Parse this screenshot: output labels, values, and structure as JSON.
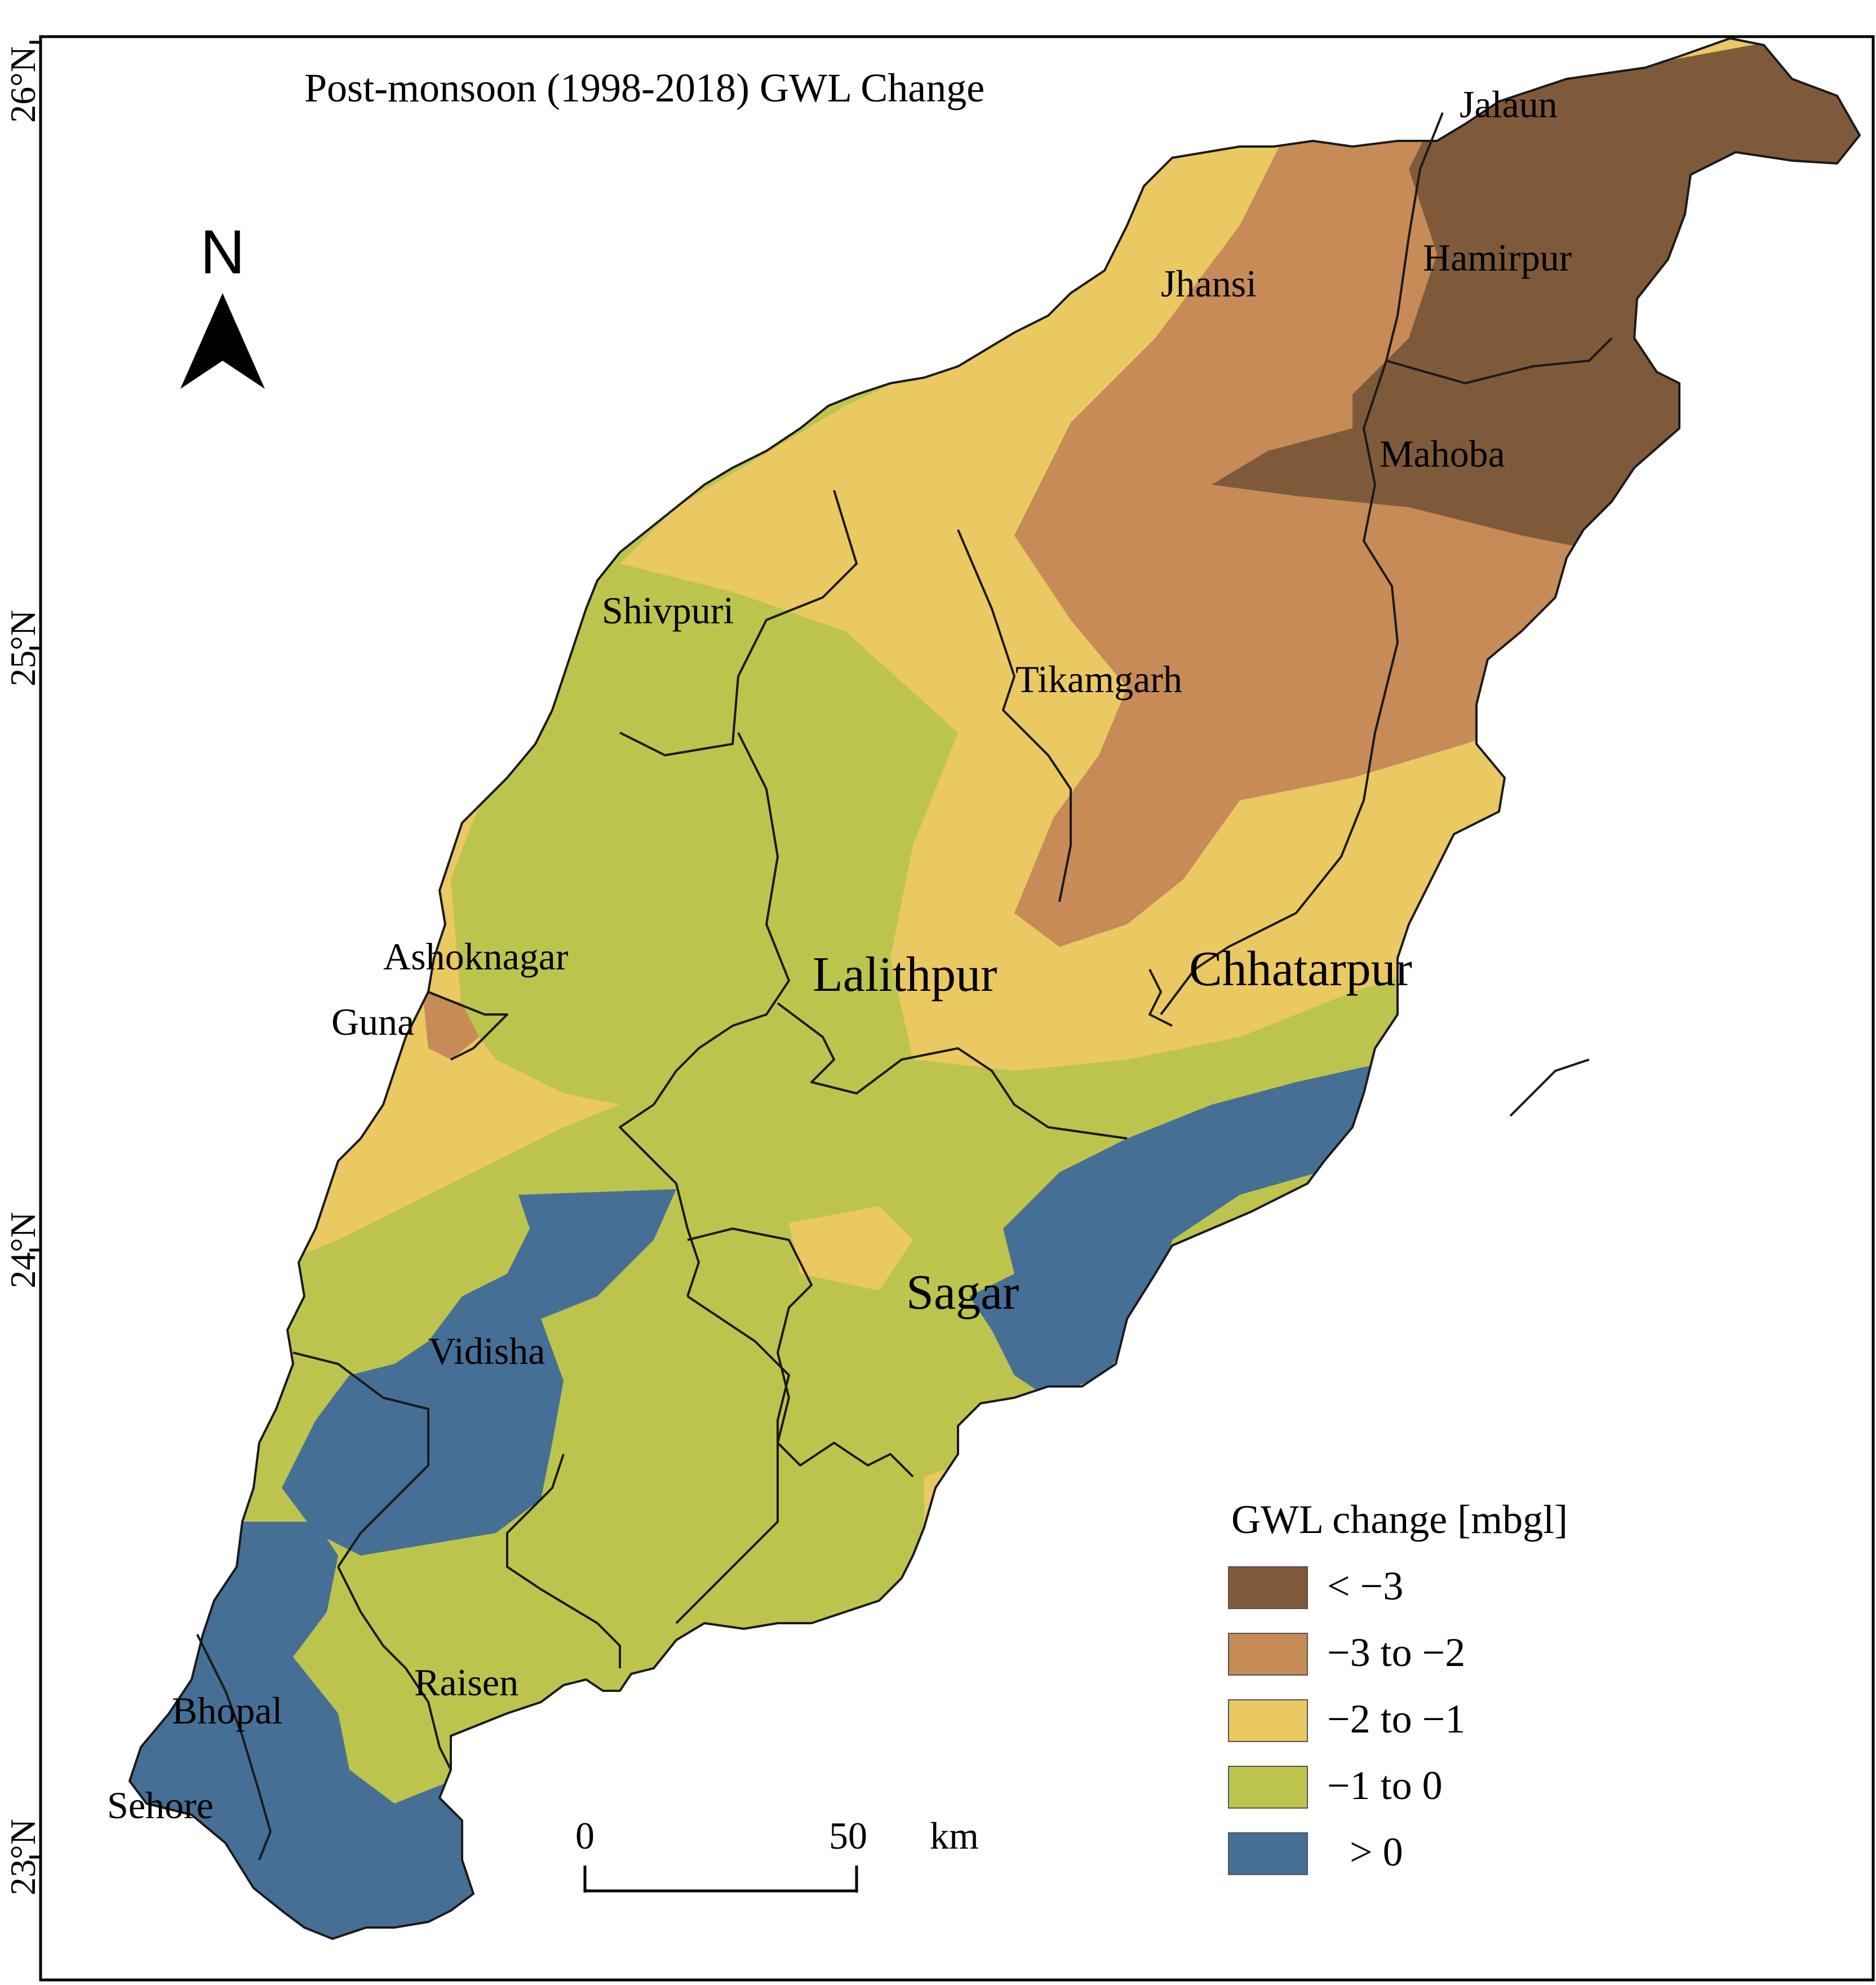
{
  "title": "Post-monsoon (1998-2018) GWL Change",
  "axis": {
    "lat_ticks": [
      "26°N",
      "25°N",
      "24°N",
      "23°N"
    ]
  },
  "north_arrow": {
    "label": "N",
    "icon": "north-arrow-icon"
  },
  "districts": {
    "jalaun": "Jalaun",
    "hamirpur": "Hamirpur",
    "jhansi": "Jhansi",
    "mahoba": "Mahoba",
    "shivpuri": "Shivpuri",
    "tikamgarh": "Tikamgarh",
    "ashoknagar": "Ashoknagar",
    "guna": "Guna",
    "lalithpur": "Lalithpur",
    "chhatarpur": "Chhatarpur",
    "sagar": "Sagar",
    "vidisha": "Vidisha",
    "raisen": "Raisen",
    "bhopal": "Bhopal",
    "sehore": "Sehore"
  },
  "legend": {
    "title": "GWL change [mbgl]",
    "items": [
      {
        "label": "< −3",
        "color": "#7f5a3a"
      },
      {
        "label": "−3 to −2",
        "color": "#c68b57"
      },
      {
        "label": "−2 to −1",
        "color": "#eac862"
      },
      {
        "label": "−1 to 0",
        "color": "#bcc44d"
      },
      {
        "label": "> 0",
        "color": "#466f96"
      }
    ]
  },
  "scale_bar": {
    "start": "0",
    "end": "50",
    "unit": "km"
  },
  "colors": {
    "lt_minus3": "#7f5a3a",
    "minus3_to_minus2": "#c68b57",
    "minus2_to_minus1": "#eac862",
    "minus1_to_0": "#bcc44d",
    "gt_0": "#466f96"
  }
}
